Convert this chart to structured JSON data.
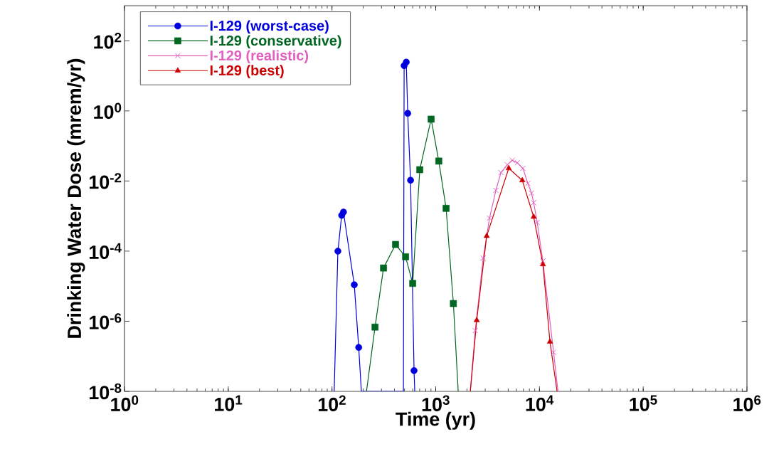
{
  "chart_data": {
    "type": "line",
    "xlabel": "Time (yr)",
    "ylabel": "Drinking Water Dose (mrem/yr)",
    "log": "xy",
    "xlim": [
      1,
      1000000
    ],
    "ylim": [
      1e-08,
      1000
    ],
    "xticks": [
      {
        "value": 1,
        "label": "10$^{0}$"
      },
      {
        "value": 10,
        "label": "10$^{1}$"
      },
      {
        "value": 100,
        "label": "10$^{2}$"
      },
      {
        "value": 1000,
        "label": "10$^{3}$"
      },
      {
        "value": 10000,
        "label": "10$^{4}$"
      },
      {
        "value": 100000,
        "label": "10$^{5}$"
      },
      {
        "value": 1000000,
        "label": "10$^{6}$"
      }
    ],
    "yticks": [
      {
        "value": 1e-08,
        "label": "10$^{-8}$"
      },
      {
        "value": 1e-06,
        "label": "10$^{-6}$"
      },
      {
        "value": 0.0001,
        "label": "10$^{-4}$"
      },
      {
        "value": 0.01,
        "label": "10$^{-2}$"
      },
      {
        "value": 1,
        "label": "10$^{0}$"
      },
      {
        "value": 100,
        "label": "10$^{2}$"
      }
    ],
    "grid": false,
    "legend": "top left",
    "line_style": "solid",
    "series": [
      {
        "name": "I-129 (worst-case)",
        "color": "#0000dd",
        "marker": "circle",
        "x": [
          105,
          114,
          124,
          129,
          164,
          181,
          192,
          488,
          496,
          520,
          537,
          572,
          618,
          628
        ],
        "values": [
          1e-08,
          0.0001,
          0.00105,
          0.0013,
          1.1e-05,
          1.8e-07,
          1e-08,
          1e-08,
          19.5,
          24.5,
          0.85,
          0.0105,
          3.9e-08,
          1e-08
        ]
      },
      {
        "name": "I-129 (conservative)",
        "color": "#006622",
        "marker": "square",
        "x": [
          215,
          260,
          314,
          410,
          512,
          600,
          702,
          903,
          1070,
          1259,
          1480,
          1647
        ],
        "values": [
          1e-08,
          6.8e-07,
          3.3e-05,
          0.000155,
          6.9e-05,
          1.2e-05,
          0.021,
          0.58,
          0.037,
          0.00166,
          3.2e-06,
          1e-08
        ]
      },
      {
        "name": "I-129 (realistic)",
        "color": "#e060c0",
        "marker": "cross",
        "x": [
          2155,
          2405,
          2865,
          3300,
          3800,
          4250,
          4900,
          5470,
          6110,
          6920,
          7740,
          8380,
          8790,
          9510,
          10790,
          13680,
          15100
        ],
        "values": [
          1e-08,
          5.4e-07,
          6.3e-05,
          0.00087,
          0.0054,
          0.0174,
          0.029,
          0.039,
          0.033,
          0.023,
          0.0085,
          0.0045,
          0.0024,
          0.00066,
          5.2e-05,
          1.3e-07,
          1e-08
        ]
      },
      {
        "name": "I-129 (best)",
        "color": "#cc0000",
        "marker": "triangle",
        "x": [
          2155,
          2484,
          3100,
          5055,
          6830,
          8790,
          10790,
          12620,
          14790
        ],
        "values": [
          1e-08,
          1.07e-06,
          0.00027,
          0.023,
          0.0104,
          0.00095,
          4.2e-05,
          2.6e-07,
          1e-08
        ]
      }
    ]
  }
}
